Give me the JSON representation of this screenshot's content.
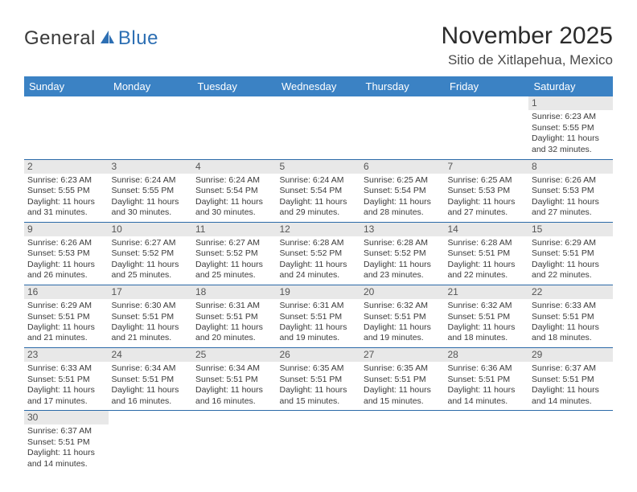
{
  "logo": {
    "part1": "General",
    "part2": "Blue"
  },
  "header": {
    "month_title": "November 2025",
    "location": "Sitio de Xitlapehua, Mexico"
  },
  "colors": {
    "header_blue": "#3b82c4",
    "row_divider": "#2b6aa8",
    "daynum_bg": "#e8e8e8",
    "page_bg": "#ffffff",
    "logo_dark": "#3a3a3a",
    "logo_blue": "#2d6fb3"
  },
  "weekdays": [
    "Sunday",
    "Monday",
    "Tuesday",
    "Wednesday",
    "Thursday",
    "Friday",
    "Saturday"
  ],
  "calendar": {
    "leading_blanks": 6,
    "days": [
      {
        "n": 1,
        "sunrise": "6:23 AM",
        "sunset": "5:55 PM",
        "daylight": "11 hours and 32 minutes."
      },
      {
        "n": 2,
        "sunrise": "6:23 AM",
        "sunset": "5:55 PM",
        "daylight": "11 hours and 31 minutes."
      },
      {
        "n": 3,
        "sunrise": "6:24 AM",
        "sunset": "5:55 PM",
        "daylight": "11 hours and 30 minutes."
      },
      {
        "n": 4,
        "sunrise": "6:24 AM",
        "sunset": "5:54 PM",
        "daylight": "11 hours and 30 minutes."
      },
      {
        "n": 5,
        "sunrise": "6:24 AM",
        "sunset": "5:54 PM",
        "daylight": "11 hours and 29 minutes."
      },
      {
        "n": 6,
        "sunrise": "6:25 AM",
        "sunset": "5:54 PM",
        "daylight": "11 hours and 28 minutes."
      },
      {
        "n": 7,
        "sunrise": "6:25 AM",
        "sunset": "5:53 PM",
        "daylight": "11 hours and 27 minutes."
      },
      {
        "n": 8,
        "sunrise": "6:26 AM",
        "sunset": "5:53 PM",
        "daylight": "11 hours and 27 minutes."
      },
      {
        "n": 9,
        "sunrise": "6:26 AM",
        "sunset": "5:53 PM",
        "daylight": "11 hours and 26 minutes."
      },
      {
        "n": 10,
        "sunrise": "6:27 AM",
        "sunset": "5:52 PM",
        "daylight": "11 hours and 25 minutes."
      },
      {
        "n": 11,
        "sunrise": "6:27 AM",
        "sunset": "5:52 PM",
        "daylight": "11 hours and 25 minutes."
      },
      {
        "n": 12,
        "sunrise": "6:28 AM",
        "sunset": "5:52 PM",
        "daylight": "11 hours and 24 minutes."
      },
      {
        "n": 13,
        "sunrise": "6:28 AM",
        "sunset": "5:52 PM",
        "daylight": "11 hours and 23 minutes."
      },
      {
        "n": 14,
        "sunrise": "6:28 AM",
        "sunset": "5:51 PM",
        "daylight": "11 hours and 22 minutes."
      },
      {
        "n": 15,
        "sunrise": "6:29 AM",
        "sunset": "5:51 PM",
        "daylight": "11 hours and 22 minutes."
      },
      {
        "n": 16,
        "sunrise": "6:29 AM",
        "sunset": "5:51 PM",
        "daylight": "11 hours and 21 minutes."
      },
      {
        "n": 17,
        "sunrise": "6:30 AM",
        "sunset": "5:51 PM",
        "daylight": "11 hours and 21 minutes."
      },
      {
        "n": 18,
        "sunrise": "6:31 AM",
        "sunset": "5:51 PM",
        "daylight": "11 hours and 20 minutes."
      },
      {
        "n": 19,
        "sunrise": "6:31 AM",
        "sunset": "5:51 PM",
        "daylight": "11 hours and 19 minutes."
      },
      {
        "n": 20,
        "sunrise": "6:32 AM",
        "sunset": "5:51 PM",
        "daylight": "11 hours and 19 minutes."
      },
      {
        "n": 21,
        "sunrise": "6:32 AM",
        "sunset": "5:51 PM",
        "daylight": "11 hours and 18 minutes."
      },
      {
        "n": 22,
        "sunrise": "6:33 AM",
        "sunset": "5:51 PM",
        "daylight": "11 hours and 18 minutes."
      },
      {
        "n": 23,
        "sunrise": "6:33 AM",
        "sunset": "5:51 PM",
        "daylight": "11 hours and 17 minutes."
      },
      {
        "n": 24,
        "sunrise": "6:34 AM",
        "sunset": "5:51 PM",
        "daylight": "11 hours and 16 minutes."
      },
      {
        "n": 25,
        "sunrise": "6:34 AM",
        "sunset": "5:51 PM",
        "daylight": "11 hours and 16 minutes."
      },
      {
        "n": 26,
        "sunrise": "6:35 AM",
        "sunset": "5:51 PM",
        "daylight": "11 hours and 15 minutes."
      },
      {
        "n": 27,
        "sunrise": "6:35 AM",
        "sunset": "5:51 PM",
        "daylight": "11 hours and 15 minutes."
      },
      {
        "n": 28,
        "sunrise": "6:36 AM",
        "sunset": "5:51 PM",
        "daylight": "11 hours and 14 minutes."
      },
      {
        "n": 29,
        "sunrise": "6:37 AM",
        "sunset": "5:51 PM",
        "daylight": "11 hours and 14 minutes."
      },
      {
        "n": 30,
        "sunrise": "6:37 AM",
        "sunset": "5:51 PM",
        "daylight": "11 hours and 14 minutes."
      }
    ]
  },
  "labels": {
    "sunrise": "Sunrise:",
    "sunset": "Sunset:",
    "daylight": "Daylight:"
  }
}
